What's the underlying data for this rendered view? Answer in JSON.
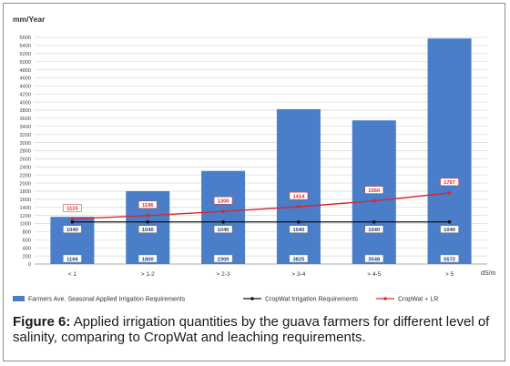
{
  "chart_data": {
    "type": "bar",
    "ylabel": "mm/Year",
    "xlabel": "dS/m",
    "ylim": [
      0,
      5600
    ],
    "ytick_step": 200,
    "grid": true,
    "legend_position": "bottom",
    "categories": [
      "< 1",
      "> 1-2",
      "> 2-3",
      "> 3-4",
      "> 4-5",
      "> 5"
    ],
    "series": [
      {
        "name": "Farmers Ave. Seasonal Applied Irrigation Requirements",
        "kind": "bar",
        "color": "#4a7ec9",
        "values": [
          1166,
          1800,
          2300,
          3825,
          3548,
          5572
        ],
        "labels": [
          "1166",
          "1800",
          "2300",
          "3825",
          "3548",
          "5572"
        ]
      },
      {
        "name": "CropWat Irrigation Requirements",
        "kind": "line",
        "color": "#111111",
        "values": [
          1040,
          1040,
          1040,
          1040,
          1040,
          1040
        ],
        "labels": [
          "1040",
          "1040",
          "1040",
          "1040",
          "1040",
          "1040"
        ]
      },
      {
        "name": "CropWat + LR",
        "kind": "line",
        "color": "#d42a2a",
        "values": [
          1115,
          1196,
          1300,
          1414,
          1560,
          1757
        ],
        "labels": [
          "1115",
          "1196",
          "1300",
          "1414",
          "1560",
          "1757"
        ]
      }
    ]
  },
  "caption": {
    "figure_label": "Figure 6:",
    "text": "Applied irrigation quantities by the guava farmers for different level of salinity, comparing to CropWat and leaching requirements."
  }
}
